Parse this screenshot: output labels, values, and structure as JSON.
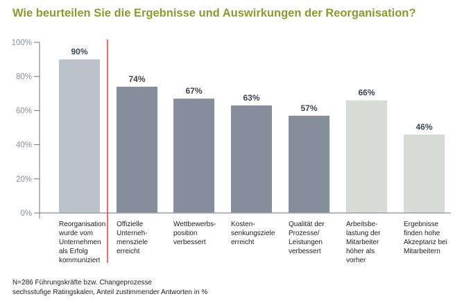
{
  "chart_data": {
    "type": "bar",
    "title": "Wie beurteilen Sie die Ergebnisse und Auswirkungen der Reorganisation?",
    "categories": [
      "Reorganisation wurde vom Unternehmen als Erfolg kommuniziert",
      "Offizielle Unterneh-mensziele erreicht",
      "Wettbewerbs-position verbessert",
      "Kosten-senkungsziele erreicht",
      "Qualität der Prozesse/ Leistungen verbessert",
      "Arbeitsbe-lastung der Mitarbeiter höher als vorher",
      "Ergebnisse finden hohe Akzeptanz bei Mitarbeitern"
    ],
    "category_lines": [
      [
        "Reorganisation",
        "wurde vom",
        "Unternehmen",
        "als Erfolg",
        "kommuniziert"
      ],
      [
        "Offizielle",
        "Unterneh-",
        "mensziele",
        "erreicht"
      ],
      [
        "Wettbewerbs-",
        "position",
        "verbessert"
      ],
      [
        "Kosten-",
        "senkungsziele",
        "erreicht"
      ],
      [
        "Qualität der",
        "Prozesse/",
        "Leistungen",
        "verbessert"
      ],
      [
        "Arbeitsbe-",
        "lastung der",
        "Mitarbeiter",
        "höher als",
        "vorher"
      ],
      [
        "Ergebnisse",
        "finden hohe",
        "Akzeptanz bei",
        "Mitarbeitern"
      ]
    ],
    "values": [
      90,
      74,
      67,
      63,
      57,
      66,
      46
    ],
    "value_labels": [
      "90%",
      "74%",
      "67%",
      "63%",
      "57%",
      "66%",
      "46%"
    ],
    "bar_colors": [
      "#bcc2cb",
      "#848f9b",
      "#848f9b",
      "#848f9b",
      "#848f9b",
      "#d8dad5",
      "#d8dad5"
    ],
    "ylim": [
      0,
      100
    ],
    "yticks": [
      0,
      20,
      40,
      60,
      80,
      100
    ],
    "ytick_labels": [
      "0%",
      "20%",
      "40%",
      "60%",
      "80%",
      "100%"
    ],
    "xlabel": "",
    "ylabel": "",
    "grid": false,
    "separator_color": "#e8383d",
    "title_color": "#8e9a2c"
  },
  "footnotes": [
    "N=286 Führungskräfte bzw. Changeprozesse",
    "sechsstufige Ratingskalen, Anteil zustimmender Antworten in %"
  ]
}
